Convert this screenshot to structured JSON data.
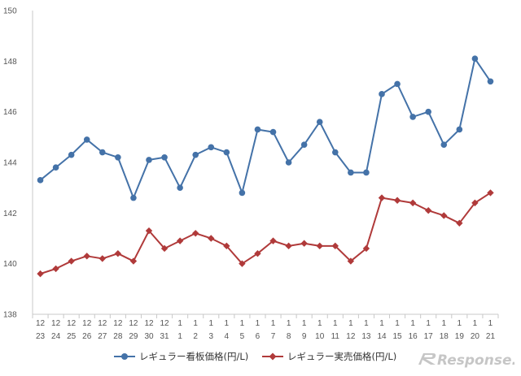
{
  "chart_data": {
    "type": "line",
    "title": "",
    "xlabel": "",
    "ylabel": "",
    "ylim": [
      138,
      150
    ],
    "yticks": [
      138,
      140,
      142,
      144,
      146,
      148,
      150
    ],
    "grid": false,
    "legend_position": "bottom",
    "categories": [
      [
        "12",
        "23"
      ],
      [
        "12",
        "24"
      ],
      [
        "12",
        "25"
      ],
      [
        "12",
        "26"
      ],
      [
        "12",
        "27"
      ],
      [
        "12",
        "28"
      ],
      [
        "12",
        "29"
      ],
      [
        "12",
        "30"
      ],
      [
        "12",
        "31"
      ],
      [
        "1",
        "1"
      ],
      [
        "1",
        "2"
      ],
      [
        "1",
        "3"
      ],
      [
        "1",
        "4"
      ],
      [
        "1",
        "5"
      ],
      [
        "1",
        "6"
      ],
      [
        "1",
        "7"
      ],
      [
        "1",
        "8"
      ],
      [
        "1",
        "9"
      ],
      [
        "1",
        "10"
      ],
      [
        "1",
        "11"
      ],
      [
        "1",
        "12"
      ],
      [
        "1",
        "13"
      ],
      [
        "1",
        "14"
      ],
      [
        "1",
        "15"
      ],
      [
        "1",
        "16"
      ],
      [
        "1",
        "17"
      ],
      [
        "1",
        "18"
      ],
      [
        "1",
        "19"
      ],
      [
        "1",
        "20"
      ],
      [
        "1",
        "21"
      ]
    ],
    "series": [
      {
        "name": "レギュラー看板価格(円/L)",
        "color": "#4472a8",
        "marker": "circle",
        "values": [
          143.3,
          143.8,
          144.3,
          144.9,
          144.4,
          144.2,
          142.6,
          144.1,
          144.2,
          143.0,
          144.3,
          144.6,
          144.4,
          142.8,
          145.3,
          145.2,
          144.0,
          144.7,
          145.6,
          144.4,
          143.6,
          143.6,
          146.7,
          147.1,
          145.8,
          146.0,
          144.7,
          145.3,
          148.1,
          147.2
        ]
      },
      {
        "name": "レギュラー実売価格(円/L)",
        "color": "#b03a3a",
        "marker": "diamond",
        "values": [
          139.6,
          139.8,
          140.1,
          140.3,
          140.2,
          140.4,
          140.1,
          141.3,
          140.6,
          140.9,
          141.2,
          141.0,
          140.7,
          140.0,
          140.4,
          140.9,
          140.7,
          140.8,
          140.7,
          140.7,
          140.1,
          140.6,
          142.6,
          142.5,
          142.4,
          142.1,
          141.9,
          141.6,
          142.4,
          142.8
        ]
      }
    ]
  },
  "colors": {
    "axis": "#c8c8c8",
    "tick_text": "#555555"
  },
  "watermark": {
    "label": "Response."
  }
}
